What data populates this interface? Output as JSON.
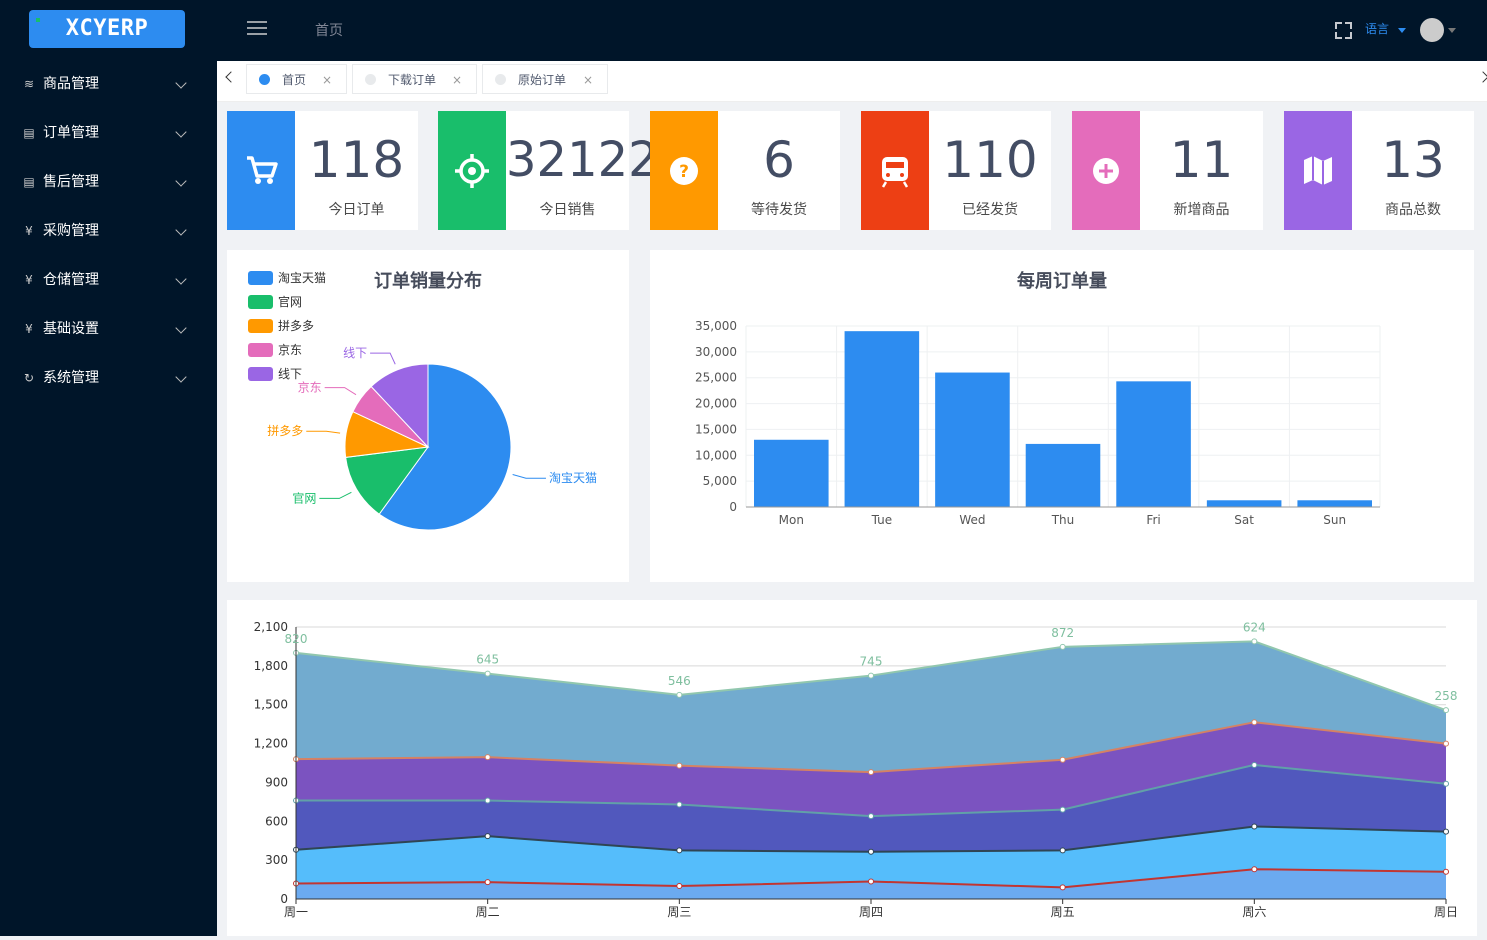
{
  "app": {
    "logo": "XCYERP"
  },
  "sidebar": {
    "items": [
      {
        "label": "商品管理",
        "icon": "layers-icon",
        "glyph": "≋"
      },
      {
        "label": "订单管理",
        "icon": "list-icon",
        "glyph": "▤"
      },
      {
        "label": "售后管理",
        "icon": "list-icon",
        "glyph": "▤"
      },
      {
        "label": "采购管理",
        "icon": "yen-icon",
        "glyph": "¥"
      },
      {
        "label": "仓储管理",
        "icon": "yen-icon",
        "glyph": "¥"
      },
      {
        "label": "基础设置",
        "icon": "yen-icon",
        "glyph": "¥"
      },
      {
        "label": "系统管理",
        "icon": "refresh-icon",
        "glyph": "↻"
      }
    ]
  },
  "header": {
    "breadcrumb": "首页",
    "language": "语言"
  },
  "tabs": [
    {
      "label": "首页",
      "active": true,
      "close": "×"
    },
    {
      "label": "下载订单",
      "active": false,
      "close": "×"
    },
    {
      "label": "原始订单",
      "active": false,
      "close": "×"
    }
  ],
  "stats": [
    {
      "value": "118",
      "label": "今日订单",
      "color": "#2d8cf0",
      "icon": "cart-icon"
    },
    {
      "value": "32122",
      "label": "今日销售",
      "color": "#19be6b",
      "icon": "target-icon"
    },
    {
      "value": "6",
      "label": "等待发货",
      "color": "#ff9900",
      "icon": "question-icon"
    },
    {
      "value": "110",
      "label": "已经发货",
      "color": "#ed3f14",
      "icon": "train-icon"
    },
    {
      "value": "11",
      "label": "新增商品",
      "color": "#e46cbb",
      "icon": "plus-icon"
    },
    {
      "value": "13",
      "label": "商品总数",
      "color": "#9a66e4",
      "icon": "map-icon"
    }
  ],
  "chart_data": [
    {
      "type": "pie",
      "title": "订单销量分布",
      "legend_position": "top-left",
      "slices": [
        {
          "name": "淘宝天猫",
          "value": 60,
          "color": "#2d8cf0"
        },
        {
          "name": "官网",
          "value": 13,
          "color": "#19be6b"
        },
        {
          "name": "拼多多",
          "value": 9,
          "color": "#ff9900"
        },
        {
          "name": "京东",
          "value": 6,
          "color": "#e46cbb"
        },
        {
          "name": "线下",
          "value": 12,
          "color": "#9a66e4"
        }
      ]
    },
    {
      "type": "bar",
      "title": "每周订单量",
      "categories": [
        "Mon",
        "Tue",
        "Wed",
        "Thu",
        "Fri",
        "Sat",
        "Sun"
      ],
      "values": [
        13000,
        34000,
        26000,
        12200,
        24300,
        1300,
        1300
      ],
      "ylim": [
        0,
        35000
      ],
      "yticks": [
        0,
        5000,
        10000,
        15000,
        20000,
        25000,
        30000,
        35000
      ],
      "ytick_labels": [
        "0",
        "5,000",
        "10,000",
        "15,000",
        "20,000",
        "25,000",
        "30,000",
        "35,000"
      ],
      "color": "#2d8cf0",
      "grid": true
    },
    {
      "type": "area",
      "stacked": true,
      "categories": [
        "周一",
        "周二",
        "周三",
        "周四",
        "周五",
        "周六",
        "周日"
      ],
      "ylim": [
        0,
        2100
      ],
      "yticks": [
        0,
        300,
        600,
        900,
        1200,
        1500,
        1800,
        2100
      ],
      "ytick_labels": [
        "0",
        "300",
        "600",
        "900",
        "1,200",
        "1,500",
        "1,800",
        "2,100"
      ],
      "series": [
        {
          "values": [
            120,
            130,
            100,
            135,
            90,
            230,
            210
          ],
          "fill": "#6baaf0",
          "line": "#c23531"
        },
        {
          "values": [
            260,
            355,
            275,
            230,
            285,
            330,
            310
          ],
          "fill": "#55bdfb",
          "line": "#2f4554"
        },
        {
          "values": [
            380,
            275,
            355,
            275,
            315,
            475,
            370
          ],
          "fill": "#5158bd",
          "line": "#61a0a8"
        },
        {
          "values": [
            320,
            335,
            300,
            340,
            385,
            330,
            310
          ],
          "fill": "#7b53c0",
          "line": "#d48265"
        },
        {
          "values": [
            820,
            645,
            546,
            745,
            872,
            624,
            258
          ],
          "fill": "#72abcf",
          "line": "#91c7ae"
        }
      ],
      "top_labels": [
        "820",
        "645",
        "546",
        "745",
        "872",
        "624",
        "258"
      ],
      "label_color": "#7fbf9f"
    }
  ]
}
